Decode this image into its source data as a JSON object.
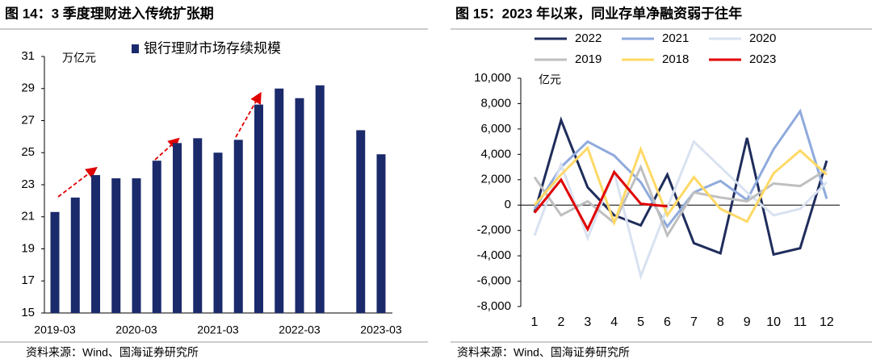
{
  "chart_data": [
    {
      "type": "bar",
      "title": "图 14：3 季度理财进入传统扩张期",
      "source": "资料来源：Wind、国海证券研究所",
      "y_label": "万亿元",
      "categories": [
        "2019-03",
        null,
        null,
        null,
        "2020-03",
        null,
        null,
        null,
        "2021-03",
        null,
        null,
        null,
        "2022-03",
        null,
        null,
        null,
        "2023-03"
      ],
      "series": [
        {
          "name": "银行理财市场存续规模",
          "color": "#1b2a6b",
          "values": [
            21.3,
            22.2,
            23.6,
            23.4,
            23.4,
            24.5,
            25.6,
            25.9,
            25.0,
            25.8,
            28.0,
            29.0,
            28.4,
            29.2,
            null,
            26.4,
            24.9
          ]
        }
      ],
      "ylim": [
        15,
        31
      ],
      "yticks": [
        15,
        17,
        19,
        21,
        23,
        25,
        27,
        29,
        31
      ]
    },
    {
      "type": "line",
      "title": "图 15：2023 年以来，同业存单净融资弱于往年",
      "source": "资料来源：Wind、国海证券研究所",
      "y_label": "亿元",
      "categories": [
        1,
        2,
        3,
        4,
        5,
        6,
        7,
        8,
        9,
        10,
        11,
        12
      ],
      "series": [
        {
          "name": "2022",
          "color": "#1f2d5c",
          "values": [
            -600,
            6700,
            1400,
            -800,
            -1600,
            2400,
            -3000,
            -3800,
            5300,
            -3900,
            -3400,
            3500
          ]
        },
        {
          "name": "2021",
          "color": "#8faadc",
          "values": [
            -300,
            3000,
            5000,
            3900,
            1800,
            -1700,
            1000,
            1900,
            400,
            4400,
            7400,
            500
          ]
        },
        {
          "name": "2020",
          "color": "#d9e2f1",
          "values": [
            -2400,
            3200,
            -2600,
            2600,
            -5600,
            -200,
            5000,
            3000,
            1000,
            -800,
            -300,
            1800
          ]
        },
        {
          "name": "2019",
          "color": "#bfbfbf",
          "values": [
            2200,
            -800,
            300,
            -1400,
            3000,
            -2400,
            1000,
            600,
            300,
            1700,
            1500,
            2800
          ]
        },
        {
          "name": "2018",
          "color": "#ffd966",
          "values": [
            0,
            2400,
            4500,
            -1400,
            4400,
            -800,
            2200,
            -300,
            -1300,
            2500,
            4300,
            2400
          ]
        },
        {
          "name": "2023",
          "color": "#e00000",
          "values": [
            -600,
            2000,
            -1900,
            2600,
            100,
            -100,
            null,
            null,
            null,
            null,
            null,
            null
          ]
        }
      ],
      "ylim": [
        -8000,
        10000
      ],
      "yticks": [
        {
          "value": -8000,
          "label": "-8,000"
        },
        {
          "value": -6000,
          "label": "-6,000"
        },
        {
          "value": -4000,
          "label": "-4,000"
        },
        {
          "value": -2000,
          "label": "-2,000"
        },
        0,
        {
          "value": 2000,
          "label": "2,000"
        },
        {
          "value": 4000,
          "label": "4,000"
        },
        {
          "value": 6000,
          "label": "6,000"
        },
        {
          "value": 8000,
          "label": "8,000"
        },
        {
          "value": 10000,
          "label": "10,000"
        }
      ]
    }
  ]
}
